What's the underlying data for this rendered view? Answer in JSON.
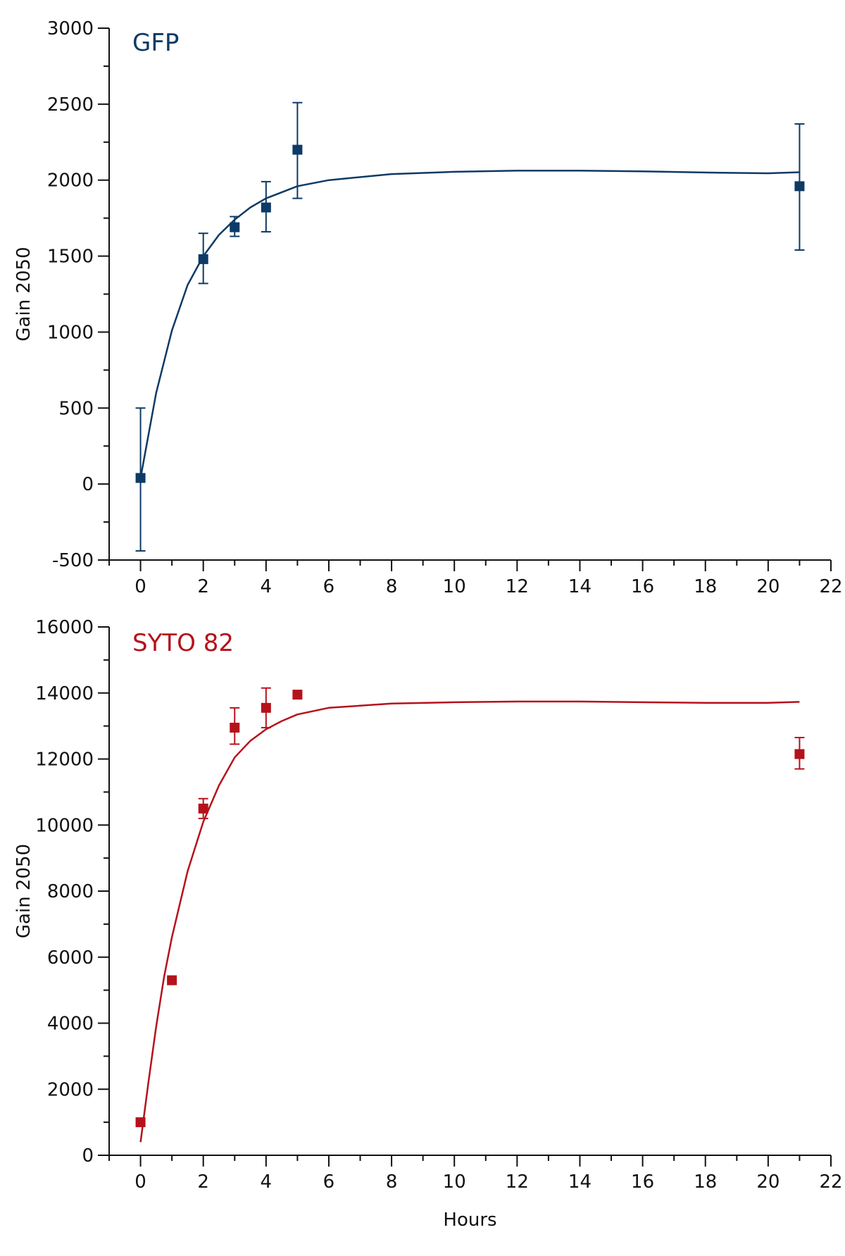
{
  "chart_data": [
    {
      "type": "scatter",
      "title": "GFP",
      "xlabel": "",
      "ylabel": "Gain 2050",
      "xlim": [
        -1,
        22
      ],
      "ylim": [
        -500,
        3000
      ],
      "x_ticks": [
        0,
        2,
        4,
        6,
        8,
        10,
        12,
        14,
        16,
        18,
        20,
        22
      ],
      "y_ticks": [
        -500,
        0,
        500,
        1000,
        1500,
        2000,
        2500,
        3000
      ],
      "grid": false,
      "color": "#0d3a66",
      "points": [
        {
          "x": 0,
          "y": 40,
          "err_low": -440,
          "err_high": 500
        },
        {
          "x": 2,
          "y": 1480,
          "err_low": 1320,
          "err_high": 1650
        },
        {
          "x": 3,
          "y": 1690,
          "err_low": 1630,
          "err_high": 1760
        },
        {
          "x": 4,
          "y": 1820,
          "err_low": 1660,
          "err_high": 1990
        },
        {
          "x": 5,
          "y": 2200,
          "err_low": 1880,
          "err_high": 2510
        },
        {
          "x": 21,
          "y": 1960,
          "err_low": 1540,
          "err_high": 2370
        }
      ],
      "fit": [
        {
          "x": 0,
          "y": 40
        },
        {
          "x": 0.5,
          "y": 600
        },
        {
          "x": 1,
          "y": 1010
        },
        {
          "x": 1.5,
          "y": 1310
        },
        {
          "x": 2,
          "y": 1500
        },
        {
          "x": 2.5,
          "y": 1640
        },
        {
          "x": 3,
          "y": 1740
        },
        {
          "x": 3.5,
          "y": 1820
        },
        {
          "x": 4,
          "y": 1880
        },
        {
          "x": 5,
          "y": 1960
        },
        {
          "x": 6,
          "y": 2000
        },
        {
          "x": 8,
          "y": 2040
        },
        {
          "x": 10,
          "y": 2055
        },
        {
          "x": 12,
          "y": 2062
        },
        {
          "x": 14,
          "y": 2062
        },
        {
          "x": 16,
          "y": 2058
        },
        {
          "x": 18,
          "y": 2050
        },
        {
          "x": 20,
          "y": 2045
        },
        {
          "x": 21,
          "y": 2052
        }
      ]
    },
    {
      "type": "scatter",
      "title": "SYTO 82",
      "xlabel": "Hours",
      "ylabel": "Gain 2050",
      "xlim": [
        -1,
        22
      ],
      "ylim": [
        0,
        16000
      ],
      "x_ticks": [
        0,
        2,
        4,
        6,
        8,
        10,
        12,
        14,
        16,
        18,
        20,
        22
      ],
      "y_ticks": [
        0,
        2000,
        4000,
        6000,
        8000,
        10000,
        12000,
        14000,
        16000
      ],
      "grid": false,
      "color": "#b5121b",
      "points": [
        {
          "x": 0,
          "y": 1000
        },
        {
          "x": 1,
          "y": 5300
        },
        {
          "x": 2,
          "y": 10500,
          "err_low": 10200,
          "err_high": 10800
        },
        {
          "x": 3,
          "y": 12950,
          "err_low": 12450,
          "err_high": 13550
        },
        {
          "x": 4,
          "y": 13550,
          "err_low": 12950,
          "err_high": 14150
        },
        {
          "x": 5,
          "y": 13950
        },
        {
          "x": 21,
          "y": 12150,
          "err_low": 11700,
          "err_high": 12650
        }
      ],
      "fit": [
        {
          "x": 0,
          "y": 400
        },
        {
          "x": 0.25,
          "y": 2200
        },
        {
          "x": 0.5,
          "y": 3900
        },
        {
          "x": 0.75,
          "y": 5400
        },
        {
          "x": 1,
          "y": 6600
        },
        {
          "x": 1.5,
          "y": 8600
        },
        {
          "x": 2,
          "y": 10100
        },
        {
          "x": 2.5,
          "y": 11200
        },
        {
          "x": 3,
          "y": 12050
        },
        {
          "x": 3.5,
          "y": 12550
        },
        {
          "x": 4,
          "y": 12900
        },
        {
          "x": 4.5,
          "y": 13150
        },
        {
          "x": 5,
          "y": 13350
        },
        {
          "x": 6,
          "y": 13550
        },
        {
          "x": 8,
          "y": 13680
        },
        {
          "x": 10,
          "y": 13720
        },
        {
          "x": 12,
          "y": 13740
        },
        {
          "x": 14,
          "y": 13740
        },
        {
          "x": 16,
          "y": 13720
        },
        {
          "x": 18,
          "y": 13700
        },
        {
          "x": 20,
          "y": 13700
        },
        {
          "x": 21,
          "y": 13730
        }
      ]
    }
  ]
}
